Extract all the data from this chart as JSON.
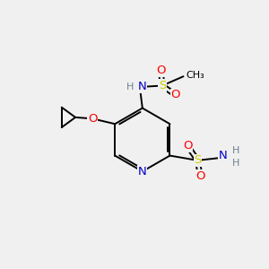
{
  "bg_color": "#f0f0f0",
  "C": "#000000",
  "N": "#0000cc",
  "O": "#ff0000",
  "S": "#cccc00",
  "H": "#708090",
  "figsize": [
    3.0,
    3.0
  ],
  "dpi": 100
}
